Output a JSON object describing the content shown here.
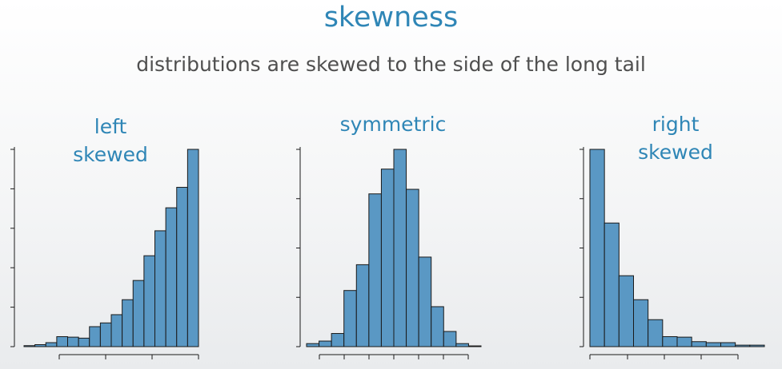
{
  "slide": {
    "title": "skewness",
    "subtitle": "distributions are skewed to the side of the long tail"
  },
  "colors": {
    "title": "#2f86b6",
    "bars": "#5a98c4",
    "text": "#4f4f4f"
  },
  "chart_data": [
    {
      "type": "bar",
      "title_lines": [
        "left",
        "skewed"
      ],
      "values": [
        0.4,
        0.8,
        1.6,
        4.0,
        3.8,
        3.4,
        8.0,
        9.5,
        12.8,
        18.8,
        26.5,
        36.4,
        46.4,
        55.6,
        63.8,
        79.0
      ],
      "ylim": [
        0,
        79.0
      ]
    },
    {
      "type": "bar",
      "title_lines": [
        "symmetric"
      ],
      "values": [
        1.2,
        2.2,
        5.2,
        22.2,
        32.4,
        60.4,
        70.2,
        78.0,
        62.2,
        35.4,
        15.8,
        6.0,
        1.2,
        0.3
      ],
      "ylim": [
        0,
        78.0
      ]
    },
    {
      "type": "bar",
      "title_lines": [
        "right",
        "skewed"
      ],
      "values": [
        79.0,
        49.5,
        28.4,
        18.8,
        10.8,
        4.0,
        3.8,
        2.0,
        1.6,
        1.6,
        0.6,
        0.6
      ],
      "ylim": [
        0,
        79.0
      ]
    }
  ]
}
